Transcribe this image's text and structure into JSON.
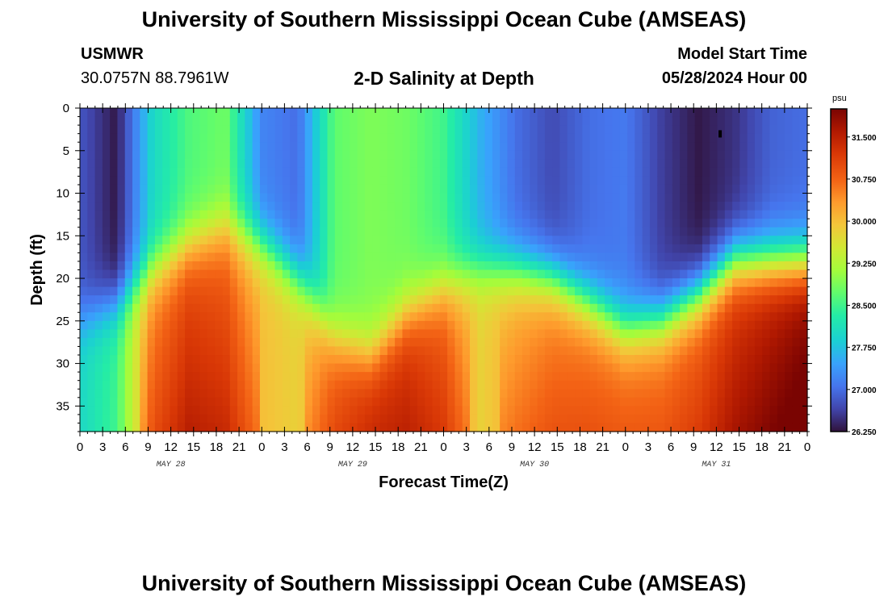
{
  "header": {
    "title": "University of Southern Mississippi Ocean Cube (AMSEAS)",
    "station": "USMWR",
    "coords": "30.0757N  88.7961W",
    "subtitle": "2-D Salinity at Depth",
    "start_label": "Model Start Time",
    "start_value": "05/28/2024 Hour 00"
  },
  "footer": {
    "title": "University of Southern Mississippi Ocean Cube (AMSEAS)"
  },
  "chart_data": {
    "type": "heatmap",
    "title": "2-D Salinity at Depth",
    "xlabel": "Forecast Time(Z)",
    "ylabel": "Depth (ft)",
    "x_range_hours": [
      0,
      96
    ],
    "y_range_ft": [
      0,
      38
    ],
    "x_ticks": [
      "0",
      "3",
      "6",
      "9",
      "12",
      "15",
      "18",
      "21",
      "0",
      "3",
      "6",
      "9",
      "12",
      "15",
      "18",
      "21",
      "0",
      "3",
      "6",
      "9",
      "12",
      "15",
      "18",
      "21",
      "0",
      "3",
      "6",
      "9",
      "12",
      "15",
      "18",
      "21",
      "0"
    ],
    "y_ticks": [
      "0",
      "5",
      "10",
      "15",
      "20",
      "25",
      "30",
      "35"
    ],
    "date_labels": [
      {
        "hour": 12,
        "label": "MAY 28"
      },
      {
        "hour": 36,
        "label": "MAY 29"
      },
      {
        "hour": 60,
        "label": "MAY 30"
      },
      {
        "hour": 84,
        "label": "MAY 31"
      }
    ],
    "colorbar": {
      "unit": "psu",
      "min": 26.25,
      "max": 32.0,
      "ticks": [
        "31.500",
        "30.750",
        "30.000",
        "29.250",
        "28.500",
        "27.750",
        "27.000",
        "26.250"
      ]
    },
    "bottom_layer_depth_ft": [
      25,
      23,
      19,
      16,
      14,
      16,
      20,
      27,
      29,
      24,
      21,
      19,
      19,
      20,
      23,
      26,
      25,
      22,
      18,
      18,
      18
    ],
    "surface_salinity_psu": [
      26.8,
      26.3,
      28.0,
      28.6,
      28.8,
      27.2,
      27.0,
      28.7,
      28.9,
      28.8,
      28.5,
      27.6,
      27.0,
      26.7,
      27.0,
      27.1,
      26.6,
      26.3,
      26.5,
      26.9,
      27.0
    ],
    "bottom_salinity_psu": [
      28.0,
      28.5,
      30.5,
      31.0,
      30.8,
      30.0,
      29.8,
      30.8,
      31.2,
      31.2,
      30.8,
      29.8,
      30.2,
      30.5,
      30.6,
      30.6,
      30.6,
      30.8,
      31.2,
      31.5,
      31.8
    ]
  }
}
